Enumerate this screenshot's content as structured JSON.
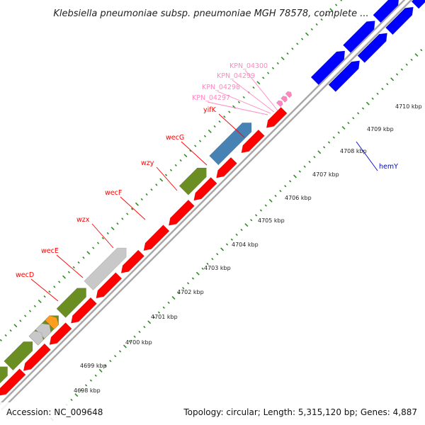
{
  "title": "Klebsiella pneumoniae subsp. pneumoniae MGH 78578, complete ...",
  "footer": {
    "accession": "Accession: NC_009648",
    "summary": "Topology: circular; Length: 5,315,120 bp; Genes: 4,887"
  },
  "colors": {
    "background": "#ffffff",
    "backbone": "#a8a8a8",
    "tick": "#2e8b22",
    "minus_strand": "#ff0000",
    "plus_olive": "#6b8e23",
    "plus_gray": "#c8c8c8",
    "plus_orange": "#ff9d1e",
    "plus_steelblue": "#4682b4",
    "blue_gene": "#0000ff",
    "red_label": "#ff0000",
    "pink_label": "#ff88c0",
    "blue_label": "#0000c8"
  },
  "scale_labels": [
    "4698 kbp",
    "4699 kbp",
    "4700 kbp",
    "4701 kbp",
    "4702 kbp",
    "4703 kbp",
    "4704 kbp",
    "4705 kbp",
    "4706 kbp",
    "4707 kbp",
    "4708 kbp",
    "4709 kbp",
    "4710 kbp"
  ],
  "gene_labels": [
    {
      "text": "wecD",
      "color": "red"
    },
    {
      "text": "wecE",
      "color": "red"
    },
    {
      "text": "wzx",
      "color": "red"
    },
    {
      "text": "wecF",
      "color": "red"
    },
    {
      "text": "wzy",
      "color": "red"
    },
    {
      "text": "wecG",
      "color": "red"
    },
    {
      "text": "yifK",
      "color": "red"
    },
    {
      "text": "KPN_04297",
      "color": "pink"
    },
    {
      "text": "KPN_04298",
      "color": "pink"
    },
    {
      "text": "KPN_04299",
      "color": "pink"
    },
    {
      "text": "KPN_04300",
      "color": "pink"
    },
    {
      "text": "hemY",
      "color": "blue"
    }
  ],
  "tracks": {
    "plus_upper": [
      {
        "color": "olive"
      },
      {
        "color": "olive"
      },
      {
        "color": "olive"
      },
      {
        "color": "gray"
      },
      {
        "color": "orange"
      },
      {
        "color": "gray"
      },
      {
        "color": "olive"
      },
      {
        "color": "gray"
      },
      {
        "color": "olive"
      },
      {
        "color": "steelblue"
      }
    ],
    "minus": [
      {
        "color": "red"
      },
      {
        "color": "red"
      },
      {
        "color": "red"
      },
      {
        "color": "red"
      },
      {
        "color": "red"
      },
      {
        "color": "red"
      },
      {
        "color": "red"
      },
      {
        "color": "red"
      },
      {
        "color": "red"
      },
      {
        "color": "red"
      },
      {
        "color": "red"
      },
      {
        "color": "red"
      }
    ],
    "right_upper": [
      {
        "color": "blue"
      },
      {
        "color": "blue"
      },
      {
        "color": "blue"
      },
      {
        "color": "blue"
      }
    ],
    "right_lower": [
      {
        "color": "blue"
      },
      {
        "color": "blue"
      },
      {
        "color": "blue"
      },
      {
        "color": "blue"
      }
    ],
    "pink_markers": [
      {
        "color": "pink"
      },
      {
        "color": "pink"
      },
      {
        "color": "pink"
      }
    ]
  }
}
